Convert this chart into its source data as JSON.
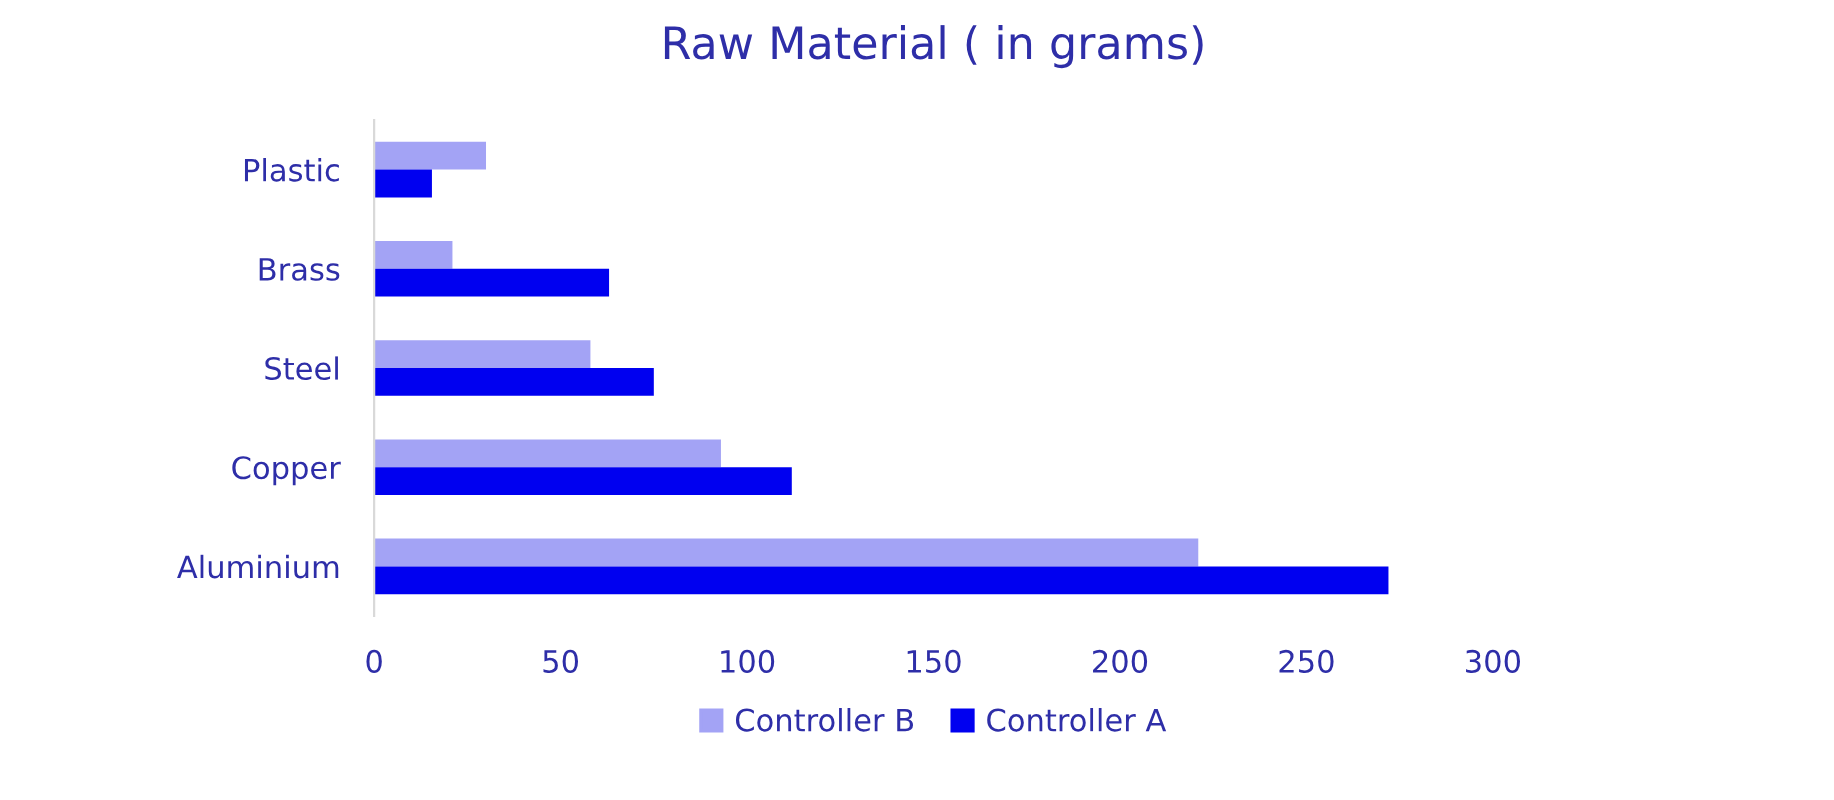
{
  "chart_data": {
    "type": "bar",
    "orientation": "horizontal",
    "title": "Raw Material ( in grams)",
    "categories": [
      "Plastic",
      "Brass",
      "Steel",
      "Copper",
      "Aluminium"
    ],
    "series": [
      {
        "name": "Controller B",
        "color": "#a3a3f5",
        "values": [
          30,
          21,
          58,
          93,
          221
        ]
      },
      {
        "name": "Controller A",
        "color": "#0000f0",
        "values": [
          15.5,
          63,
          75,
          112,
          272
        ]
      }
    ],
    "xlim": [
      0,
      300
    ],
    "xticks": [
      0,
      50,
      100,
      150,
      200,
      250,
      300
    ],
    "grid": false,
    "legend": "bottom"
  }
}
